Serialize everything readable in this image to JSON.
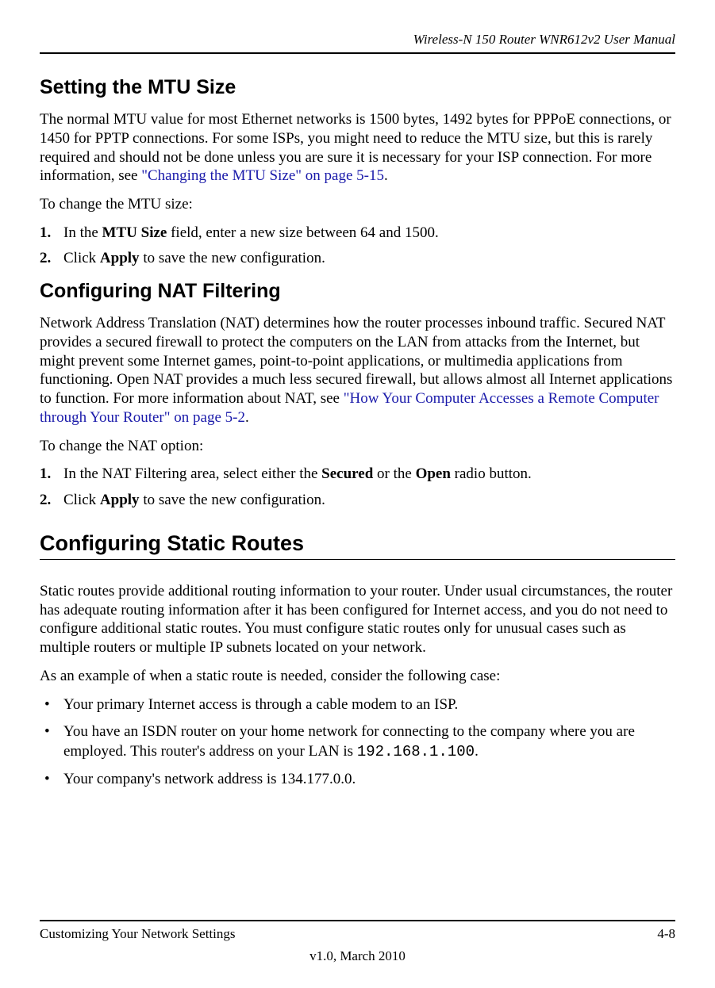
{
  "header": {
    "title": "Wireless-N 150 Router WNR612v2 User Manual"
  },
  "section1": {
    "heading": "Setting the MTU Size",
    "p1_part1": "The normal MTU value for most Ethernet networks is 1500 bytes, 1492 bytes for PPPoE connections, or 1450 for PPTP connections. For some ISPs, you might need to reduce the MTU size, but this is rarely required and should not be done unless you are sure it is necessary for your ISP connection. For more information, see ",
    "p1_link": "\"Changing the MTU Size\" on page 5-15",
    "p1_part2": ".",
    "p2": "To change the MTU size:",
    "step1_num": "1.",
    "step1_a": "In the ",
    "step1_b": "MTU Size",
    "step1_c": " field, enter a new size between 64 and 1500.",
    "step2_num": "2.",
    "step2_a": "Click ",
    "step2_b": "Apply",
    "step2_c": " to save the new configuration."
  },
  "section2": {
    "heading": "Configuring NAT Filtering",
    "p1_part1": "Network Address Translation (NAT) determines how the router processes inbound traffic. Secured NAT provides a secured firewall to protect the computers on the LAN from attacks from the Internet, but might prevent some Internet games, point-to-point applications, or multimedia applications from functioning. Open NAT provides a much less secured firewall, but allows almost all Internet applications to function. For more information about NAT, see ",
    "p1_link": "\"How Your Computer Accesses a Remote Computer through Your Router\" on page 5-2",
    "p1_part2": ".",
    "p2": "To change the NAT option:",
    "step1_num": "1.",
    "step1_a": "In the NAT Filtering area, select either the ",
    "step1_b": "Secured",
    "step1_c": " or the ",
    "step1_d": "Open",
    "step1_e": " radio button.",
    "step2_num": "2.",
    "step2_a": "Click ",
    "step2_b": "Apply",
    "step2_c": " to save the new configuration."
  },
  "section3": {
    "heading": "Configuring Static Routes",
    "p1": "Static routes provide additional routing information to your router. Under usual circumstances, the router has adequate routing information after it has been configured for Internet access, and you do not need to configure additional static routes. You must configure static routes only for unusual cases such as multiple routers or multiple IP subnets located on your network.",
    "p2": "As an example of when a static route is needed, consider the following case:",
    "b1": "Your primary Internet access is through a cable modem to an ISP.",
    "b2_a": "You have an ISDN router on your home network for connecting to the company where you are employed. This router's address on your LAN is ",
    "b2_b": "192.168.1.100",
    "b2_c": ".",
    "b3": "Your company's network address is 134.177.0.0."
  },
  "footer": {
    "left": "Customizing Your Network Settings",
    "right": "4-8",
    "bottom": "v1.0, March 2010"
  }
}
